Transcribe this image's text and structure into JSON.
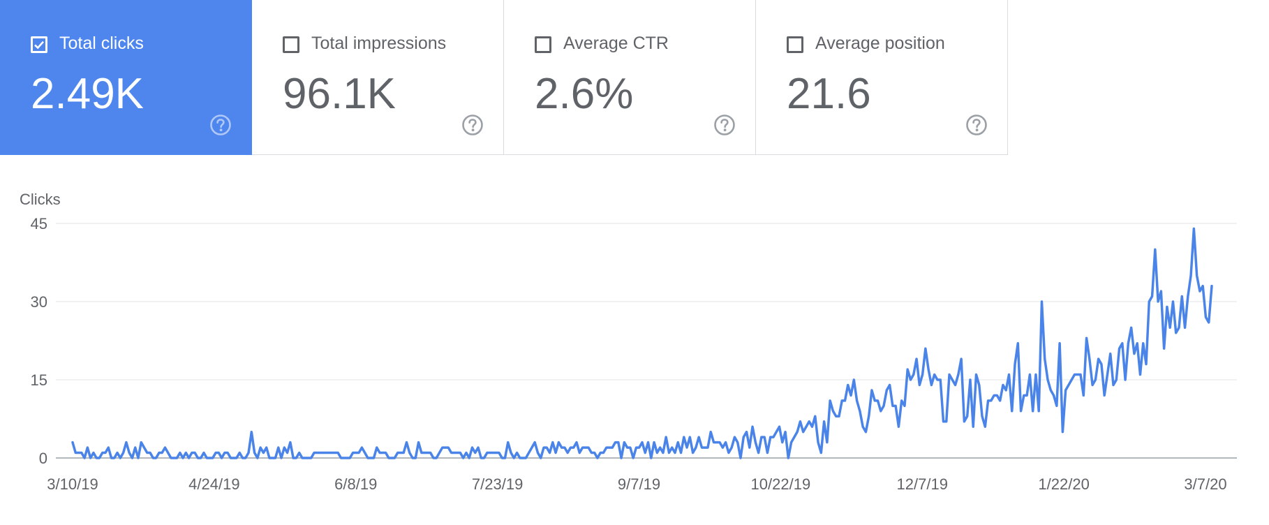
{
  "accent_color": "#4e86ee",
  "line_color": "#4a84e8",
  "cards": [
    {
      "label": "Total clicks",
      "value": "2.49K",
      "checked": true,
      "icon": "help-icon"
    },
    {
      "label": "Total impressions",
      "value": "96.1K",
      "checked": false,
      "icon": "help-icon"
    },
    {
      "label": "Average CTR",
      "value": "2.6%",
      "checked": false,
      "icon": "help-icon"
    },
    {
      "label": "Average position",
      "value": "21.6",
      "checked": false,
      "icon": "help-icon"
    }
  ],
  "chart_data": {
    "type": "line",
    "title": "",
    "ylabel": "Clicks",
    "xlabel": "",
    "ylim": [
      0,
      45
    ],
    "yticks": [
      "0",
      "15",
      "30",
      "45"
    ],
    "xtick_labels": [
      "3/10/19",
      "4/24/19",
      "6/8/19",
      "7/23/19",
      "9/7/19",
      "10/22/19",
      "12/7/19",
      "1/22/20",
      "3/7/20"
    ],
    "grid": true,
    "series": [
      {
        "name": "Clicks",
        "values": [
          3,
          1,
          1,
          1,
          0,
          2,
          0,
          1,
          0,
          0,
          1,
          1,
          2,
          0,
          0,
          1,
          0,
          1,
          3,
          1,
          0,
          2,
          0,
          3,
          2,
          1,
          1,
          0,
          0,
          1,
          1,
          2,
          1,
          0,
          0,
          0,
          1,
          0,
          1,
          0,
          1,
          1,
          0,
          0,
          1,
          0,
          0,
          0,
          1,
          1,
          0,
          1,
          1,
          0,
          0,
          0,
          1,
          0,
          0,
          1,
          5,
          1,
          0,
          2,
          1,
          2,
          0,
          0,
          0,
          2,
          0,
          2,
          1,
          3,
          0,
          0,
          1,
          0,
          0,
          0,
          0,
          1,
          1,
          1,
          1,
          1,
          1,
          1,
          1,
          1,
          0,
          0,
          0,
          0,
          1,
          1,
          1,
          2,
          1,
          0,
          0,
          0,
          2,
          1,
          1,
          1,
          0,
          0,
          0,
          1,
          1,
          1,
          3,
          1,
          0,
          0,
          3,
          1,
          1,
          1,
          1,
          0,
          0,
          1,
          2,
          2,
          2,
          1,
          1,
          1,
          1,
          0,
          1,
          0,
          2,
          1,
          2,
          0,
          0,
          1,
          1,
          1,
          1,
          1,
          0,
          0,
          3,
          1,
          0,
          1,
          0,
          0,
          0,
          1,
          2,
          3,
          1,
          0,
          2,
          2,
          1,
          3,
          1,
          3,
          2,
          2,
          1,
          2,
          2,
          3,
          1,
          2,
          2,
          2,
          1,
          1,
          0,
          1,
          1,
          2,
          2,
          2,
          3,
          3,
          0,
          3,
          2,
          2,
          0,
          2,
          2,
          3,
          1,
          3,
          0,
          3,
          1,
          2,
          1,
          4,
          1,
          2,
          1,
          3,
          1,
          4,
          2,
          4,
          1,
          2,
          4,
          2,
          2,
          2,
          5,
          3,
          3,
          3,
          2,
          3,
          1,
          2,
          4,
          3,
          0,
          4,
          5,
          2,
          6,
          3,
          1,
          4,
          4,
          1,
          4,
          4,
          5,
          6,
          3,
          5,
          0,
          3,
          4,
          5,
          7,
          5,
          6,
          7,
          6,
          8,
          3,
          1,
          7,
          3,
          11,
          9,
          8,
          8,
          11,
          11,
          14,
          12,
          15,
          11,
          9,
          6,
          5,
          8,
          13,
          11,
          11,
          9,
          10,
          13,
          14,
          10,
          10,
          6,
          11,
          10,
          17,
          15,
          16,
          19,
          14,
          16,
          21,
          17,
          14,
          16,
          15,
          15,
          7,
          7,
          16,
          15,
          14,
          16,
          19,
          7,
          8,
          15,
          6,
          16,
          14,
          8,
          6,
          11,
          11,
          12,
          12,
          11,
          14,
          13,
          16,
          9,
          18,
          22,
          9,
          12,
          12,
          16,
          9,
          16,
          9,
          30,
          19,
          15,
          13,
          12,
          10,
          22,
          5,
          13,
          14,
          15,
          16,
          16,
          16,
          12,
          23,
          19,
          14,
          15,
          19,
          18,
          12,
          16,
          20,
          14,
          15,
          21,
          22,
          15,
          22,
          25,
          20,
          22,
          16,
          22,
          18,
          30,
          31,
          40,
          30,
          32,
          21,
          29,
          25,
          30,
          24,
          25,
          31,
          25,
          31,
          35,
          44,
          35,
          32,
          33,
          27,
          26,
          33
        ]
      }
    ]
  }
}
